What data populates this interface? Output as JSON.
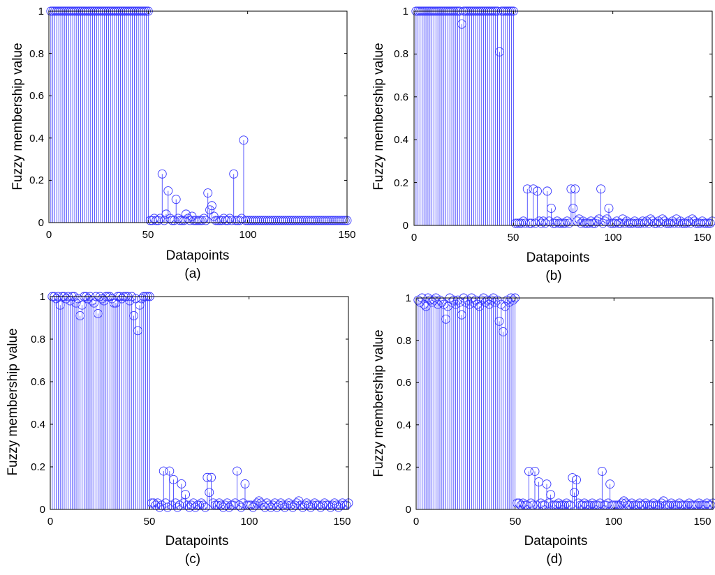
{
  "colors": {
    "stem": "#3333ff",
    "axis": "#000000",
    "background": "#ffffff"
  },
  "chart_data": [
    {
      "id": "a",
      "type": "stem",
      "caption": "(a)",
      "xlabel": "Datapoints",
      "ylabel": "Fuzzy membership value",
      "xlim": [
        0,
        150
      ],
      "ylim": [
        0,
        1
      ],
      "xticks": [
        "0",
        "50",
        "100",
        "150"
      ],
      "yticks": [
        "0",
        "0.2",
        "0.4",
        "0.6",
        "0.8",
        "1"
      ],
      "grid": false,
      "series": [
        {
          "name": "membership",
          "x_start": 1,
          "values": [
            1,
            1,
            1,
            1,
            1,
            1,
            1,
            1,
            1,
            1,
            1,
            1,
            1,
            1,
            1,
            1,
            1,
            1,
            1,
            1,
            1,
            1,
            1,
            1,
            1,
            1,
            1,
            1,
            1,
            1,
            1,
            1,
            1,
            1,
            1,
            1,
            1,
            1,
            1,
            1,
            1,
            1,
            1,
            1,
            1,
            1,
            1,
            1,
            1,
            1,
            0.01,
            0.01,
            0.02,
            0.01,
            0.01,
            0.02,
            0.23,
            0.01,
            0.04,
            0.15,
            0.02,
            0.01,
            0.01,
            0.11,
            0.02,
            0.01,
            0.01,
            0.01,
            0.04,
            0.02,
            0.01,
            0.03,
            0.01,
            0.01,
            0.01,
            0.01,
            0.01,
            0.02,
            0.01,
            0.14,
            0.06,
            0.08,
            0.03,
            0.01,
            0.01,
            0.01,
            0.01,
            0.02,
            0.01,
            0.01,
            0.02,
            0.01,
            0.23,
            0.01,
            0.01,
            0.01,
            0.02,
            0.39,
            0.01,
            0.01,
            0.01,
            0.01,
            0.01,
            0.01,
            0.01,
            0.01,
            0.01,
            0.01,
            0.01,
            0.01,
            0.01,
            0.01,
            0.01,
            0.01,
            0.01,
            0.01,
            0.01,
            0.01,
            0.01,
            0.01,
            0.01,
            0.01,
            0.01,
            0.01,
            0.01,
            0.01,
            0.01,
            0.01,
            0.01,
            0.01,
            0.01,
            0.01,
            0.01,
            0.01,
            0.01,
            0.01,
            0.01,
            0.01,
            0.01,
            0.01,
            0.01,
            0.01,
            0.01,
            0.01,
            0.01,
            0.01,
            0.01,
            0.01,
            0.01,
            0.01
          ]
        }
      ]
    },
    {
      "id": "b",
      "type": "stem",
      "caption": "(b)",
      "xlabel": "Datapoints",
      "ylabel": "Fuzzy membership value",
      "xlim": [
        0,
        150
      ],
      "ylim": [
        0,
        1
      ],
      "xticks": [
        "0",
        "50",
        "100",
        "150"
      ],
      "yticks": [
        "0",
        "0.2",
        "0.4",
        "0.6",
        "0.8",
        "1"
      ],
      "grid": false,
      "series": [
        {
          "name": "membership",
          "x_start": 1,
          "values": [
            1,
            1,
            1,
            1,
            1,
            1,
            1,
            1,
            1,
            1,
            1,
            1,
            1,
            1,
            1,
            1,
            1,
            1,
            1,
            1,
            1,
            1,
            1,
            0.94,
            1,
            1,
            1,
            1,
            1,
            1,
            1,
            1,
            1,
            1,
            1,
            1,
            1,
            1,
            1,
            1,
            1,
            1,
            0.81,
            1,
            1,
            1,
            1,
            1,
            1,
            1,
            0.01,
            0.01,
            0.01,
            0.01,
            0.02,
            0.01,
            0.17,
            0.01,
            0.01,
            0.17,
            0.01,
            0.16,
            0.02,
            0.01,
            0.02,
            0.01,
            0.16,
            0.02,
            0.08,
            0.01,
            0.01,
            0.02,
            0.01,
            0.01,
            0.01,
            0.01,
            0.02,
            0.01,
            0.17,
            0.08,
            0.17,
            0.02,
            0.03,
            0.01,
            0.02,
            0.01,
            0.01,
            0.01,
            0.02,
            0.01,
            0.01,
            0.02,
            0.03,
            0.17,
            0.01,
            0.02,
            0.03,
            0.08,
            0.01,
            0.01,
            0.01,
            0.02,
            0.01,
            0.01,
            0.03,
            0.01,
            0.02,
            0.01,
            0.01,
            0.01,
            0.02,
            0.01,
            0.01,
            0.01,
            0.02,
            0.01,
            0.02,
            0.01,
            0.03,
            0.02,
            0.01,
            0.01,
            0.02,
            0.01,
            0.03,
            0.02,
            0.01,
            0.01,
            0.01,
            0.02,
            0.01,
            0.03,
            0.01,
            0.02,
            0.01,
            0.01,
            0.01,
            0.02,
            0.01,
            0.03,
            0.02,
            0.01,
            0.01,
            0.01,
            0.02,
            0.01,
            0.01,
            0.01,
            0.01,
            0.02
          ]
        }
      ]
    },
    {
      "id": "c",
      "type": "stem",
      "caption": "(c)",
      "xlabel": "Datapoints",
      "ylabel": "Fuzzy membership value",
      "xlim": [
        0,
        150
      ],
      "ylim": [
        0,
        1
      ],
      "xticks": [
        "0",
        "50",
        "100",
        "150"
      ],
      "yticks": [
        "0",
        "0.2",
        "0.4",
        "0.6",
        "0.8",
        "1"
      ],
      "grid": false,
      "series": [
        {
          "name": "membership",
          "x_start": 1,
          "values": [
            1,
            1,
            0.99,
            1,
            0.96,
            1,
            1,
            0.99,
            1,
            0.98,
            1,
            1,
            0.97,
            0.99,
            0.91,
            0.96,
            1,
            1,
            0.99,
            1,
            0.98,
            0.97,
            1,
            0.92,
            1,
            0.99,
            0.98,
            1,
            1,
            1,
            0.99,
            0.97,
            0.97,
            1,
            1,
            0.99,
            1,
            1,
            1,
            0.98,
            1,
            0.91,
            0.99,
            0.84,
            0.96,
            0.99,
            1,
            1,
            1,
            1,
            0.03,
            0.03,
            0.02,
            0.03,
            0.01,
            0.02,
            0.18,
            0.03,
            0.01,
            0.18,
            0.02,
            0.14,
            0.03,
            0.01,
            0.02,
            0.12,
            0.03,
            0.07,
            0.02,
            0.01,
            0.02,
            0.03,
            0.01,
            0.02,
            0.02,
            0.03,
            0.02,
            0.01,
            0.15,
            0.08,
            0.15,
            0.03,
            0.02,
            0.02,
            0.03,
            0.02,
            0.01,
            0.02,
            0.03,
            0.01,
            0.02,
            0.02,
            0.03,
            0.18,
            0.02,
            0.01,
            0.03,
            0.12,
            0.02,
            0.02,
            0.02,
            0.01,
            0.02,
            0.03,
            0.04,
            0.03,
            0.02,
            0.01,
            0.03,
            0.02,
            0.01,
            0.02,
            0.03,
            0.01,
            0.02,
            0.03,
            0.02,
            0.01,
            0.02,
            0.03,
            0.02,
            0.01,
            0.02,
            0.03,
            0.04,
            0.02,
            0.01,
            0.02,
            0.03,
            0.02,
            0.01,
            0.02,
            0.03,
            0.02,
            0.02,
            0.01,
            0.02,
            0.03,
            0.02,
            0.02,
            0.01,
            0.02,
            0.03,
            0.02,
            0.01,
            0.02,
            0.03,
            0.02,
            0.02,
            0.03
          ]
        }
      ]
    },
    {
      "id": "d",
      "type": "stem",
      "caption": "(d)",
      "xlabel": "Datapoints",
      "ylabel": "Fuzzy membership value",
      "xlim": [
        0,
        150
      ],
      "ylim": [
        0,
        1
      ],
      "xticks": [
        "0",
        "50",
        "100",
        "150"
      ],
      "yticks": [
        "0",
        "0.2",
        "0.4",
        "0.6",
        "0.8",
        "1"
      ],
      "grid": false,
      "series": [
        {
          "name": "membership",
          "x_start": 1,
          "values": [
            0.99,
            0.98,
            1,
            0.97,
            0.96,
            1,
            0.99,
            0.98,
            0.99,
            1,
            0.97,
            0.99,
            0.98,
            0.97,
            0.9,
            0.96,
            1,
            0.98,
            0.99,
            0.97,
            0.99,
            0.98,
            0.92,
            1,
            0.98,
            0.99,
            0.97,
            1,
            0.98,
            0.99,
            0.97,
            0.96,
            0.99,
            1,
            0.98,
            0.99,
            0.97,
            0.99,
            1,
            0.98,
            0.99,
            0.89,
            0.97,
            0.84,
            0.96,
            0.99,
            0.98,
            1,
            0.99,
            1,
            0.03,
            0.03,
            0.02,
            0.03,
            0.02,
            0.02,
            0.18,
            0.03,
            0.02,
            0.18,
            0.02,
            0.13,
            0.03,
            0.02,
            0.02,
            0.12,
            0.03,
            0.07,
            0.02,
            0.02,
            0.02,
            0.03,
            0.02,
            0.02,
            0.02,
            0.03,
            0.02,
            0.02,
            0.15,
            0.08,
            0.14,
            0.03,
            0.02,
            0.02,
            0.03,
            0.02,
            0.02,
            0.02,
            0.03,
            0.02,
            0.02,
            0.02,
            0.03,
            0.18,
            0.02,
            0.02,
            0.03,
            0.12,
            0.02,
            0.02,
            0.02,
            0.02,
            0.02,
            0.03,
            0.04,
            0.03,
            0.02,
            0.02,
            0.03,
            0.02,
            0.02,
            0.02,
            0.03,
            0.02,
            0.02,
            0.03,
            0.02,
            0.02,
            0.02,
            0.03,
            0.02,
            0.02,
            0.02,
            0.03,
            0.04,
            0.02,
            0.02,
            0.02,
            0.03,
            0.02,
            0.02,
            0.02,
            0.03,
            0.02,
            0.02,
            0.02,
            0.02,
            0.03,
            0.02,
            0.02,
            0.02,
            0.02,
            0.03,
            0.02,
            0.02,
            0.02,
            0.03,
            0.02,
            0.02,
            0.03
          ]
        }
      ]
    }
  ]
}
